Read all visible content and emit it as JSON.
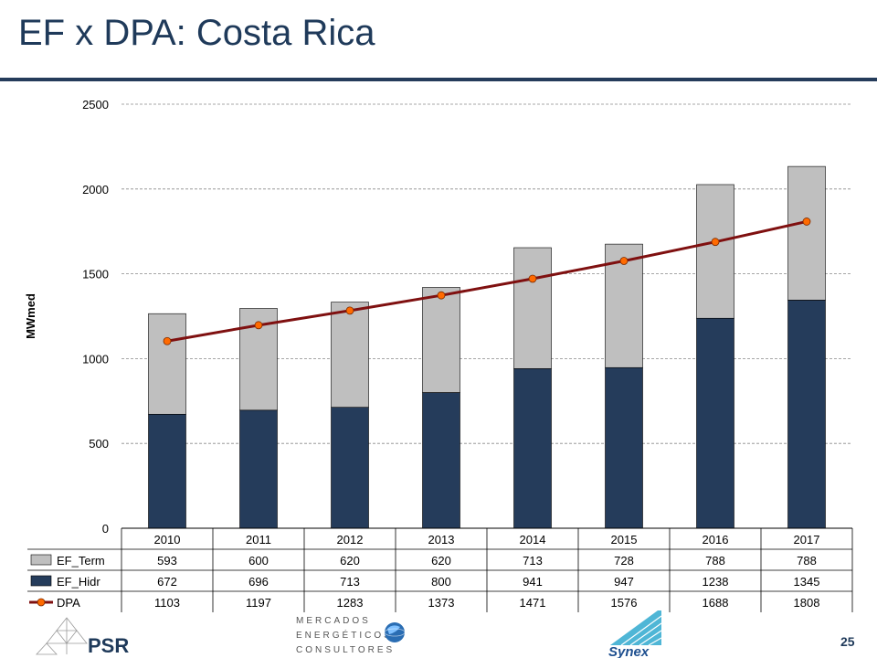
{
  "slide": {
    "title": "EF x DPA: Costa Rica",
    "page_number": "25"
  },
  "logos": {
    "psr": "PSR",
    "mercados": [
      "MERCADOS",
      "ENERGÉTICOS",
      "CONSULTORES"
    ],
    "synex": "Synex"
  },
  "chart_data": {
    "type": "bar",
    "stacked": true,
    "categories": [
      "2010",
      "2011",
      "2012",
      "2013",
      "2014",
      "2015",
      "2016",
      "2017"
    ],
    "ylabel": "MWmed",
    "ylim": [
      0,
      2500
    ],
    "yticks": [
      0,
      500,
      1000,
      1500,
      2000,
      2500
    ],
    "grid": true,
    "legend": "data-table",
    "series": [
      {
        "name": "EF_Term",
        "kind": "bar",
        "color": "#bfbfbf",
        "values": [
          593,
          600,
          620,
          620,
          713,
          728,
          788,
          788
        ]
      },
      {
        "name": "EF_Hidr",
        "kind": "bar",
        "color": "#253c5b",
        "values": [
          672,
          696,
          713,
          800,
          941,
          947,
          1238,
          1345
        ]
      },
      {
        "name": "DPA",
        "kind": "line",
        "color": "#7f1010",
        "marker_color": "#ff6a00",
        "values": [
          1103,
          1197,
          1283,
          1373,
          1471,
          1576,
          1688,
          1808
        ]
      }
    ]
  }
}
